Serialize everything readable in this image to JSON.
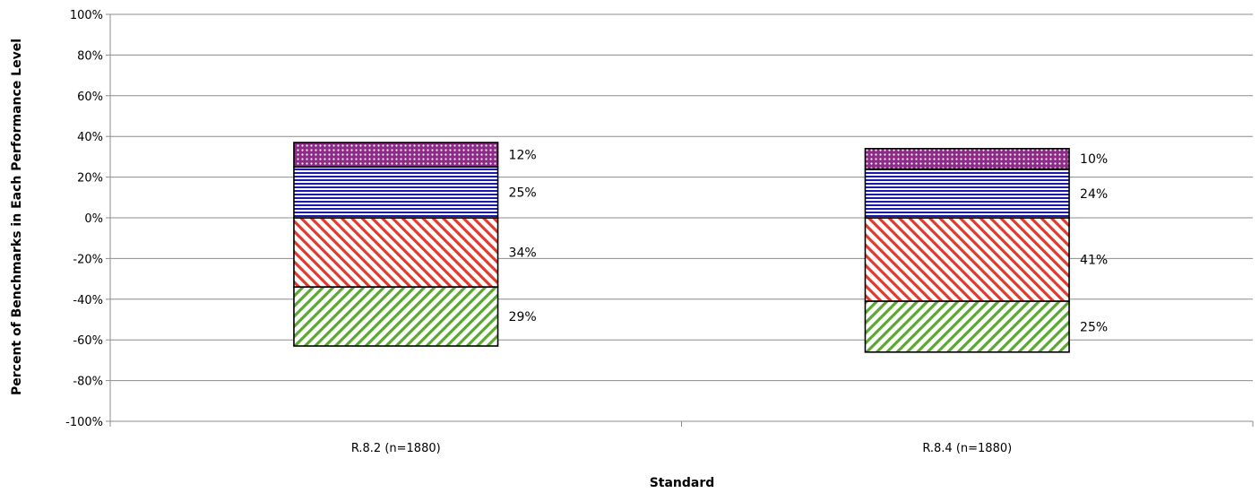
{
  "chart_data": {
    "type": "bar",
    "stacked": "diverging",
    "categories": [
      "R.8.2 (n=1880)",
      "R.8.4 (n=1880)"
    ],
    "series": [
      {
        "values": [
          -34,
          -41
        ],
        "color": "#e03a2f",
        "pattern": "diagonal-down",
        "labels": [
          "34%",
          "41%"
        ]
      },
      {
        "values": [
          -29,
          -25
        ],
        "color": "#5aa82f",
        "pattern": "diagonal-up",
        "labels": [
          "29%",
          "25%"
        ]
      },
      {
        "values": [
          25,
          24
        ],
        "color": "#1a1ab0",
        "pattern": "horizontal",
        "labels": [
          "25%",
          "24%"
        ]
      },
      {
        "values": [
          12,
          10
        ],
        "color": "#8e2a87",
        "pattern": "dots",
        "labels": [
          "12%",
          "10%"
        ]
      }
    ],
    "xlabel": "Standard",
    "ylabel": "Percent of Benchmarks in Each Performance Level",
    "ylim": [
      -100,
      100
    ],
    "yticks": [
      "100%",
      "80%",
      "60%",
      "40%",
      "20%",
      "0%",
      "-20%",
      "-40%",
      "-60%",
      "-80%",
      "-100%"
    ],
    "grid": true,
    "legend": "none"
  }
}
